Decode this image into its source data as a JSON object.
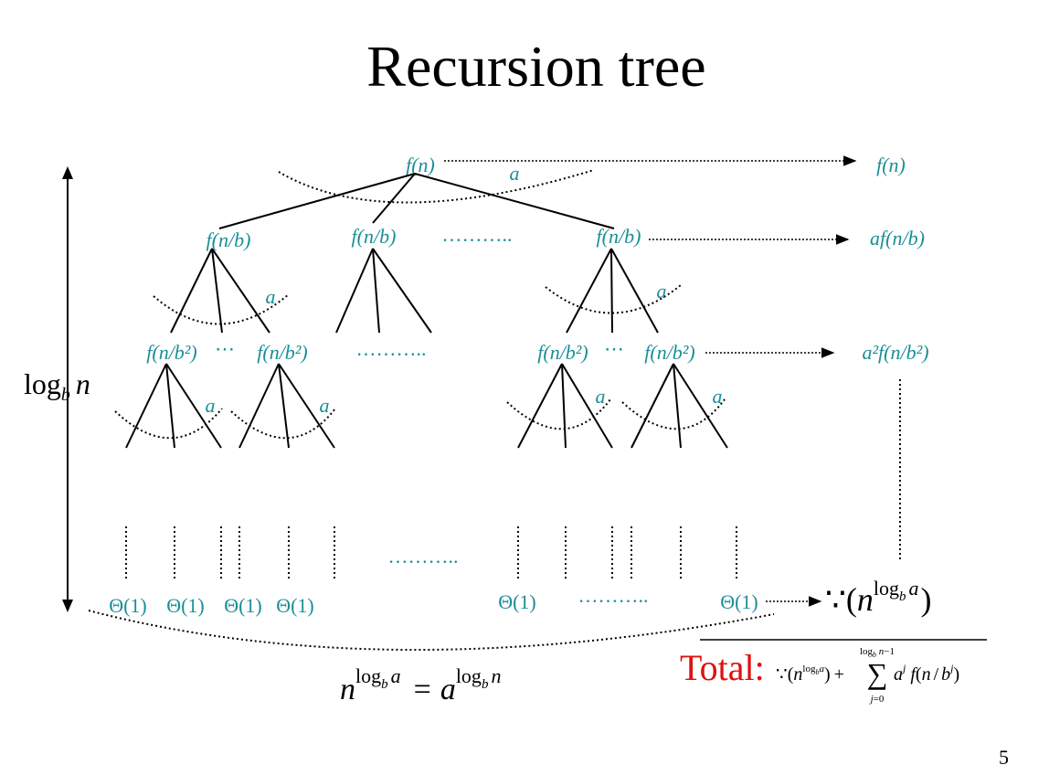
{
  "slide": {
    "title": "Recursion tree",
    "page_number": "5"
  },
  "tree": {
    "root": "f(n)",
    "branch_label": "a",
    "level1": {
      "left": "f(n/b)",
      "middle": "f(n/b)",
      "right": "f(n/b)",
      "ellipsis": "………..",
      "sum": "af(n/b)"
    },
    "level2": {
      "a": "f(n/b²)",
      "b": "f(n/b²)",
      "c": "f(n/b²)",
      "d": "f(n/b²)",
      "ellipsis": "………..",
      "dots": "⋯",
      "sum": "a²f(n/b²)"
    },
    "leaves": [
      "Θ(1)",
      "Θ(1)",
      "Θ(1)",
      "Θ(1)",
      "Θ(1)",
      "Θ(1)"
    ],
    "leaf_ellipsis": "………..",
    "root_sum": "f(n)"
  },
  "height_label": {
    "text": "log",
    "sub": "b",
    "var": "n"
  },
  "leaf_total": "Θ(n^(log_b a))",
  "leaf_identity": "n^(log_b a) = a^(log_b n)",
  "total": {
    "label": "Total:",
    "formula": "Θ(n^(log_b a)) + Σ_{j=0}^{log_b n − 1} a^j f(n/b^j)"
  }
}
